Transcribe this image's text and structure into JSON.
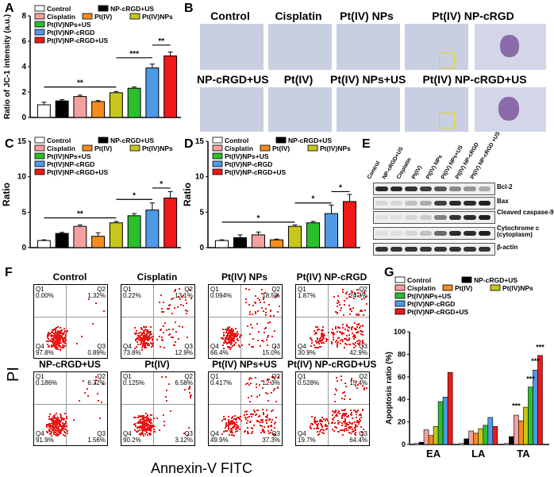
{
  "panels": {
    "A": "A",
    "B": "B",
    "C": "C",
    "D": "D",
    "E": "E",
    "F": "F",
    "G": "G"
  },
  "colors": {
    "Control": "#ffffff",
    "NP-cRGD+US": "#000000",
    "Cisplatin": "#f4a0a0",
    "Pt(IV)": "#f48c1e",
    "Pt(IV)NPs": "#c6c61c",
    "Pt(IV)NPs+US": "#2cbf2c",
    "Pt(IV)NP-cRGD": "#4e9ae8",
    "Pt(IV)NP-cRGD+US": "#f01818"
  },
  "legend_bar": {
    "Control": "Control",
    "NP-cRGD+US": "NP-cRGD+US",
    "Cisplatin": "Cisplatin",
    "Pt(IV)": "Pt(IV)",
    "Pt(IV)NPs": "Pt(IV)NPs",
    "Pt(IV)NPs+US": "Pt(IV)NPs+US",
    "Pt(IV)NP-cRGD": "Pt(IV)NP-cRGD",
    "Pt(IV)NP-cRGD+US": "Pt(IV)NP-cRGD+US"
  },
  "chart_data": [
    {
      "id": "A",
      "type": "bar",
      "categories": [
        "Control",
        "NP-cRGD+US",
        "Cisplatin",
        "Pt(IV)",
        "Pt(IV)NPs",
        "Pt(IV)NPs+US",
        "Pt(IV)NP-cRGD",
        "Pt(IV)NP-cRGD+US"
      ],
      "values": [
        1.0,
        1.3,
        1.65,
        1.25,
        1.95,
        2.3,
        3.9,
        4.85
      ],
      "errors": [
        0.2,
        0.1,
        0.1,
        0.08,
        0.1,
        0.1,
        0.3,
        0.3
      ],
      "ylabel": "Ratio of JC-1 intensity (a.u.)",
      "ylim": [
        0,
        8
      ],
      "yticks": [
        "0",
        "2",
        "4",
        "6",
        "8"
      ],
      "sig": [
        "**",
        "***",
        "**"
      ]
    },
    {
      "id": "C",
      "type": "bar",
      "categories": [
        "Control",
        "NP-cRGD+US",
        "Cisplatin",
        "Pt(IV)",
        "Pt(IV)NPs",
        "Pt(IV)NPs+US",
        "Pt(IV)NP-cRGD",
        "Pt(IV)NP-cRGD+US"
      ],
      "values": [
        1.0,
        2.0,
        3.0,
        1.6,
        3.5,
        4.5,
        5.3,
        7.0
      ],
      "errors": [
        0.1,
        0.15,
        0.2,
        0.5,
        0.2,
        0.3,
        1.0,
        0.9
      ],
      "ylabel": "Ratio",
      "ylim": [
        0,
        15
      ],
      "yticks": [
        "0",
        "5",
        "10",
        "15"
      ],
      "sig": [
        "**",
        "*",
        "*"
      ]
    },
    {
      "id": "D",
      "type": "bar",
      "categories": [
        "Control",
        "NP-cRGD+US",
        "Cisplatin",
        "Pt(IV)",
        "Pt(IV)NPs",
        "Pt(IV)NPs+US",
        "Pt(IV)NP-cRGD",
        "Pt(IV)NP-cRGD+US"
      ],
      "values": [
        1.0,
        1.4,
        1.8,
        1.1,
        3.0,
        3.5,
        4.8,
        6.5
      ],
      "errors": [
        0.1,
        0.4,
        0.4,
        0.1,
        0.2,
        0.2,
        1.2,
        1.0
      ],
      "ylabel": "Ratio",
      "ylim": [
        0,
        15
      ],
      "yticks": [
        "0",
        "5",
        "10",
        "15"
      ],
      "sig": [
        "*",
        "*",
        "*"
      ]
    },
    {
      "id": "G",
      "type": "bar",
      "title": "",
      "ylabel": "Apoptosis ratio (%)",
      "ylim": [
        0,
        100
      ],
      "yticks": [
        "0",
        "20",
        "40",
        "60",
        "80",
        "100"
      ],
      "groups": [
        "EA",
        "LA",
        "TA"
      ],
      "series": [
        {
          "name": "Control",
          "values": [
            1,
            1,
            1
          ]
        },
        {
          "name": "NP-cRGD+US",
          "values": [
            2,
            5,
            7
          ]
        },
        {
          "name": "Cisplatin",
          "values": [
            13,
            12,
            26
          ]
        },
        {
          "name": "Pt(IV)",
          "values": [
            8,
            10,
            21
          ]
        },
        {
          "name": "Pt(IV)NPs",
          "values": [
            16,
            14,
            33
          ]
        },
        {
          "name": "Pt(IV)NPs+US",
          "values": [
            38,
            17,
            51
          ]
        },
        {
          "name": "Pt(IV)NP-cRGD",
          "values": [
            42,
            24,
            66
          ]
        },
        {
          "name": "Pt(IV)NP-cRGD+US",
          "values": [
            64,
            16,
            79
          ]
        }
      ],
      "sig": [
        "***",
        "***",
        "***",
        "***"
      ]
    }
  ],
  "microscopy": {
    "top": [
      "Control",
      "Cisplatin",
      "Pt(IV) NPs",
      "Pt(IV) NP-cRGD"
    ],
    "bottom": [
      "NP-cRGD+US",
      "Pt(IV)",
      "Pt(IV) NPs+US",
      "Pt(IV) NP-cRGD+US"
    ]
  },
  "western_blot": {
    "lanes": [
      "Control",
      "NP-cRGD+US",
      "Cisplatin",
      "Pt(IV)",
      "Pt(IV) NPs",
      "Pt(IV) NPs+US",
      "Pt(IV) NP-cRGD",
      "Pt(IV) NP-cRGD +US"
    ],
    "proteins": [
      "Bcl-2",
      "Bax",
      "Cleaved caspase-9",
      "Cytochrome c (cytoplasm)",
      "β-actin"
    ],
    "intensity": [
      [
        0.9,
        0.9,
        0.85,
        0.8,
        0.7,
        0.45,
        0.4,
        0.3
      ],
      [
        0.1,
        0.1,
        0.2,
        0.3,
        0.8,
        0.9,
        0.9,
        0.95
      ],
      [
        0.05,
        0.05,
        0.1,
        0.15,
        0.5,
        0.85,
        0.9,
        0.95
      ],
      [
        0.05,
        0.05,
        0.1,
        0.2,
        0.6,
        0.9,
        0.9,
        0.95
      ],
      [
        0.85,
        0.85,
        0.85,
        0.85,
        0.85,
        0.85,
        0.85,
        0.85
      ]
    ]
  },
  "flow": {
    "ylabel": "PI",
    "xlabel": "Annexin-V FITC",
    "plots": [
      {
        "title": "Control",
        "q1": "0.00%",
        "q2": "1.32%",
        "q3": "0.89%",
        "q4": "97.8%"
      },
      {
        "title": "Cisplatin",
        "q1": "0.22%",
        "q2": "13.1%",
        "q3": "12.9%",
        "q4": "73.8%"
      },
      {
        "title": "Pt(IV) NPs",
        "q1": "0.094%",
        "q2": "18.5%",
        "q3": "15.0%",
        "q4": "66.4%"
      },
      {
        "title": "Pt(IV) NP-cRGD",
        "q1": "1.87%",
        "q2": "24.3%",
        "q3": "42.9%",
        "q4": "30.9%"
      },
      {
        "title": "NP-cRGD+US",
        "q1": "0.186%",
        "q2": "6.32%",
        "q3": "1.56%",
        "q4": "91.9%"
      },
      {
        "title": "Pt(IV)",
        "q1": "0.125%",
        "q2": "6.58%",
        "q3": "3.12%",
        "q4": "90.2%"
      },
      {
        "title": "Pt(IV) NPs+US",
        "q1": "0.417%",
        "q2": "12.3%",
        "q3": "37.3%",
        "q4": "49.9%"
      },
      {
        "title": "Pt(IV) NP-cRGD+US",
        "q1": "0.528%",
        "q2": "15.4%",
        "q3": "64.4%",
        "q4": "19.7%"
      }
    ],
    "qnames": {
      "q1": "Q1",
      "q2": "Q2",
      "q3": "Q3",
      "q4": "Q4"
    }
  }
}
